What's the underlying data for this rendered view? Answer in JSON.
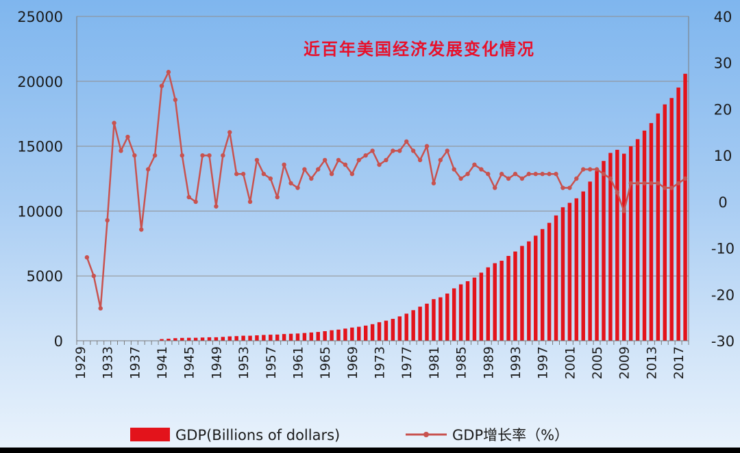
{
  "chart_data": {
    "type": "bar+line",
    "title": "近百年美国经济发展变化情况",
    "x": [
      1929,
      1930,
      1931,
      1932,
      1933,
      1934,
      1935,
      1936,
      1937,
      1938,
      1939,
      1940,
      1941,
      1942,
      1943,
      1944,
      1945,
      1946,
      1947,
      1948,
      1949,
      1950,
      1951,
      1952,
      1953,
      1954,
      1955,
      1956,
      1957,
      1958,
      1959,
      1960,
      1961,
      1962,
      1963,
      1964,
      1965,
      1966,
      1967,
      1968,
      1969,
      1970,
      1971,
      1972,
      1973,
      1974,
      1975,
      1976,
      1977,
      1978,
      1979,
      1980,
      1981,
      1982,
      1983,
      1984,
      1985,
      1986,
      1987,
      1988,
      1989,
      1990,
      1991,
      1992,
      1993,
      1994,
      1995,
      1996,
      1997,
      1998,
      1999,
      2000,
      2001,
      2002,
      2003,
      2004,
      2005,
      2006,
      2007,
      2008,
      2009,
      2010,
      2011,
      2012,
      2013,
      2014,
      2015,
      2016,
      2017,
      2018
    ],
    "x_tick_labels": [
      "1929",
      "1933",
      "1937",
      "1941",
      "1945",
      "1949",
      "1953",
      "1957",
      "1961",
      "1965",
      "1969",
      "1973",
      "1977",
      "1981",
      "1985",
      "1989",
      "1993",
      "1997",
      "2001",
      "2005",
      "2009",
      "2013",
      "2017"
    ],
    "left_axis": {
      "ylim": [
        0,
        25000
      ],
      "ticks": [
        "0",
        "5000",
        "10000",
        "15000",
        "20000",
        "25000"
      ]
    },
    "right_axis": {
      "ylim": [
        -30,
        40
      ],
      "ticks": [
        "-30",
        "-20",
        "-10",
        "0",
        "10",
        "20",
        "30",
        "40"
      ]
    },
    "grid": "horizontal",
    "legend_position": "bottom",
    "series": [
      {
        "name": "GDP(Billions of dollars)",
        "type": "bar",
        "axis": "left",
        "color": "#e3131b",
        "values": [
          null,
          null,
          null,
          null,
          null,
          null,
          null,
          null,
          null,
          null,
          null,
          null,
          130,
          160,
          200,
          220,
          230,
          230,
          250,
          270,
          270,
          300,
          340,
          360,
          390,
          390,
          420,
          450,
          470,
          480,
          520,
          540,
          560,
          600,
          640,
          680,
          740,
          810,
          860,
          940,
          1020,
          1080,
          1170,
          1280,
          1430,
          1550,
          1690,
          1880,
          2090,
          2360,
          2630,
          2860,
          3210,
          3350,
          3640,
          4040,
          4350,
          4590,
          4870,
          5250,
          5660,
          5980,
          6170,
          6540,
          6880,
          7310,
          7660,
          8100,
          8610,
          9090,
          9660,
          10290,
          10630,
          10980,
          11510,
          12270,
          13090,
          13860,
          14480,
          14720,
          14420,
          14990,
          15540,
          16200,
          16780,
          17520,
          18220,
          18710,
          19520,
          20580
        ]
      },
      {
        "name": "GDP增长率（%）",
        "type": "line",
        "axis": "right",
        "color": "#c8524f",
        "values": [
          null,
          -12,
          -16,
          -23,
          -4,
          17,
          11,
          14,
          10,
          -6,
          7,
          10,
          25,
          28,
          22,
          10,
          1,
          0,
          10,
          10,
          -1,
          10,
          15,
          6,
          6,
          0,
          9,
          6,
          5,
          1,
          8,
          4,
          3,
          7,
          5,
          7,
          9,
          6,
          9,
          8,
          6,
          9,
          10,
          11,
          8,
          9,
          11,
          11,
          13,
          11,
          9,
          12,
          4,
          9,
          11,
          7,
          5,
          6,
          8,
          7,
          6,
          3,
          6,
          5,
          6,
          5,
          6,
          6,
          6,
          6,
          6,
          3,
          3,
          5,
          7,
          7,
          7,
          6,
          5,
          2,
          -2,
          4,
          4,
          4,
          4,
          4,
          3,
          3,
          4,
          5
        ]
      }
    ]
  },
  "legend": {
    "gdp_label": "GDP(Billions of dollars)",
    "growth_label": "GDP增长率（%）"
  }
}
